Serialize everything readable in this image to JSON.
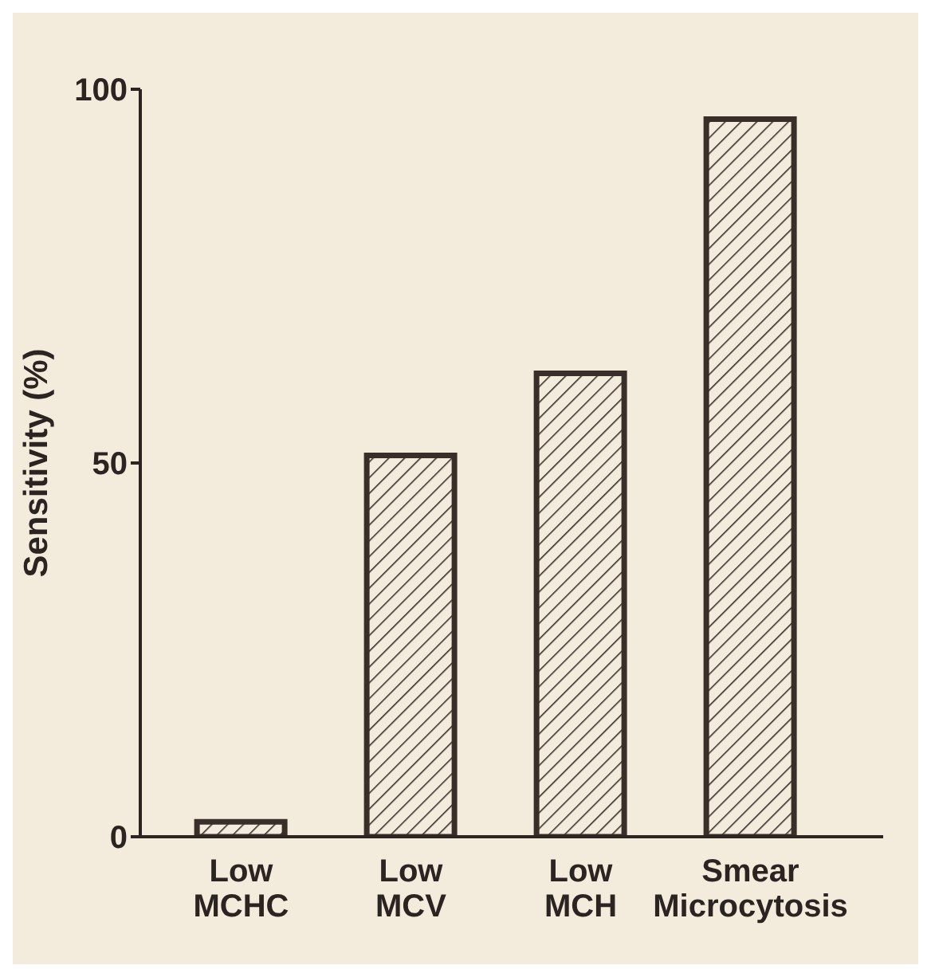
{
  "chart_data": {
    "type": "bar",
    "ylabel": "Sensitivity (%)",
    "categories": [
      "Low MCHC",
      "Low MCV",
      "Low MCH",
      "Smear Microcytosis"
    ],
    "values": [
      2,
      51,
      62,
      96
    ],
    "color": "#3a2e28",
    "ylim": [
      0,
      100
    ],
    "yticks": [
      0,
      50,
      100
    ],
    "grid": false
  }
}
